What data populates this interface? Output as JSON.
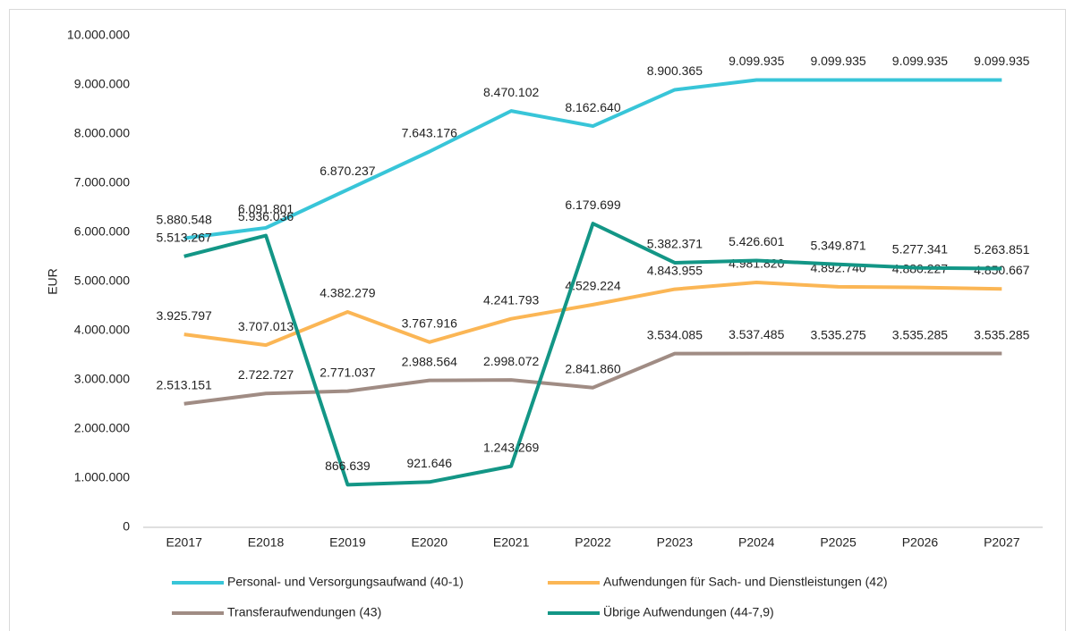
{
  "chart_data": {
    "type": "line",
    "ylabel": "EUR",
    "categories": [
      "E2017",
      "E2018",
      "E2019",
      "E2020",
      "E2021",
      "P2022",
      "P2023",
      "P2024",
      "P2025",
      "P2026",
      "P2027"
    ],
    "ylim": [
      0,
      10000000
    ],
    "yticks": [
      0,
      {
        "value": 1000000,
        "label": "1.000.000"
      },
      {
        "value": 2000000,
        "label": "2.000.000"
      },
      {
        "value": 3000000,
        "label": "3.000.000"
      },
      {
        "value": 4000000,
        "label": "4.000.000"
      },
      {
        "value": 5000000,
        "label": "5.000.000"
      },
      {
        "value": 6000000,
        "label": "6.000.000"
      },
      {
        "value": 7000000,
        "label": "7.000.000"
      },
      {
        "value": 8000000,
        "label": "8.000.000"
      },
      {
        "value": 9000000,
        "label": "9.000.000"
      },
      {
        "value": 10000000,
        "label": "10.000.000"
      }
    ],
    "grid": false,
    "legend": "bottom",
    "series": [
      {
        "name": "Personal- und Versorgungsaufwand (40-1)",
        "color": "#38c5d8",
        "values": [
          5880548,
          6091801,
          6870237,
          7643176,
          8470102,
          8162640,
          8900365,
          9099935,
          9099935,
          9099935,
          9099935
        ],
        "value_labels": [
          "5.880.548",
          "6.091.801",
          "6.870.237",
          "7.643.176",
          "8.470.102",
          "8.162.640",
          "8.900.365",
          "9.099.935",
          "9.099.935",
          "9.099.935",
          "9.099.935"
        ]
      },
      {
        "name": "Aufwendungen für Sach- und Dienstleistungen (42)",
        "color": "#fbb655",
        "values": [
          3925797,
          3707013,
          4382279,
          3767916,
          4241793,
          4529224,
          4843955,
          4981820,
          4892740,
          4880227,
          4850667
        ],
        "value_labels": [
          "3.925.797",
          "3.707.013",
          "4.382.279",
          "3.767.916",
          "4.241.793",
          "4.529.224",
          "4.843.955",
          "4.981.820",
          "4.892.740",
          "4.880.227",
          "4.850.667"
        ]
      },
      {
        "name": "Transferaufwendungen (43)",
        "color": "#a08c84",
        "values": [
          2513151,
          2722727,
          2771037,
          2988564,
          2998072,
          2841860,
          3534085,
          3537485,
          3535275,
          3535285,
          3535285
        ],
        "value_labels": [
          "2.513.151",
          "2.722.727",
          "2.771.037",
          "2.988.564",
          "2.998.072",
          "2.841.860",
          "3.534.085",
          "3.537.485",
          "3.535.275",
          "3.535.285",
          "3.535.285"
        ]
      },
      {
        "name": "Übrige Aufwendungen (44-7,9)",
        "color": "#139686",
        "values": [
          5513267,
          5936036,
          866639,
          921646,
          1243269,
          6179699,
          5382371,
          5426601,
          5349871,
          5277341,
          5263851
        ],
        "value_labels": [
          "5.513.267",
          "5.936.036",
          "866.639",
          "921.646",
          "1.243.269",
          "6.179.699",
          "5.382.371",
          "5.426.601",
          "5.349.871",
          "5.277.341",
          "5.263.851"
        ]
      }
    ]
  }
}
